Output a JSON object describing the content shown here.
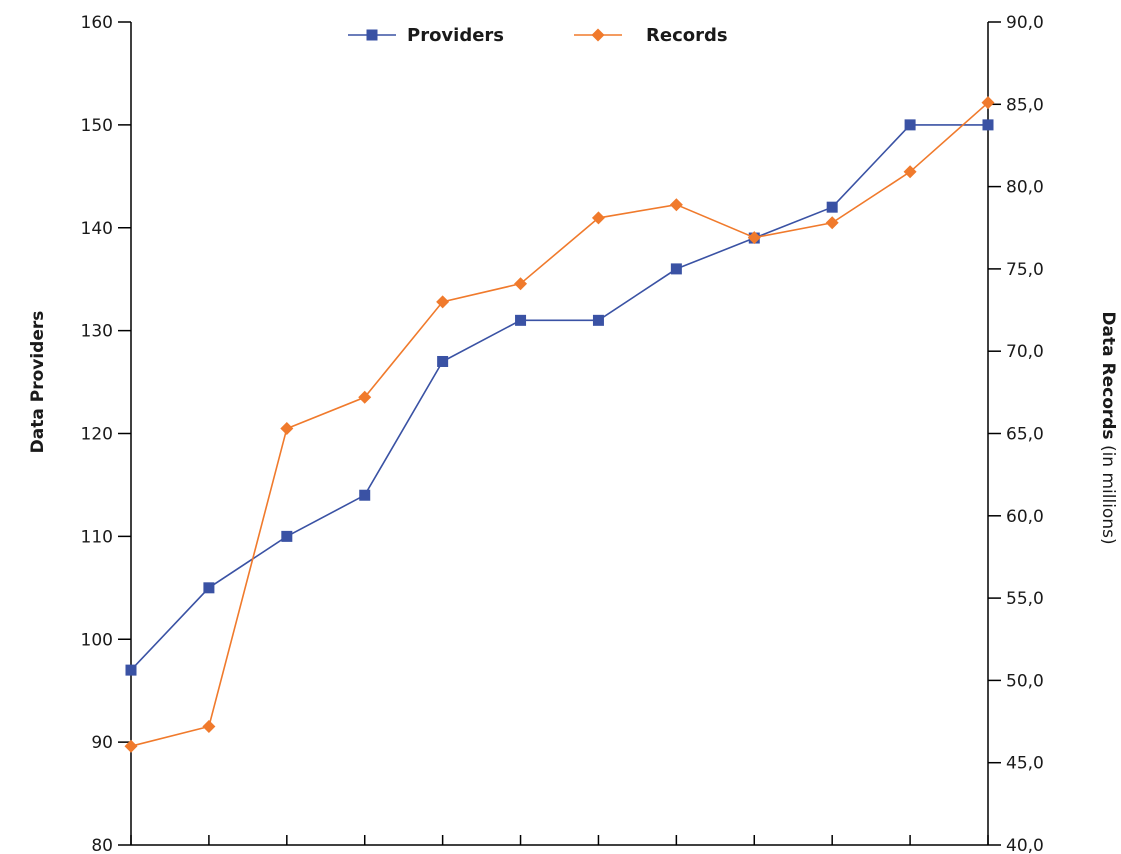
{
  "chart_data": {
    "type": "line",
    "title": "",
    "x": [
      1,
      2,
      3,
      4,
      5,
      6,
      7,
      8,
      9,
      10,
      11,
      12
    ],
    "xlabel": "",
    "y_left": {
      "label": "Data Providers",
      "ylim": [
        80,
        160
      ],
      "ticks": [
        80,
        90,
        100,
        110,
        120,
        130,
        140,
        150,
        160
      ],
      "tick_labels": [
        "80",
        "90",
        "100",
        "110",
        "120",
        "130",
        "140",
        "150",
        "160"
      ]
    },
    "y_right": {
      "label_bold": "Data Records",
      "label_rest": " (in millions)",
      "ylim": [
        40,
        90
      ],
      "ticks": [
        40,
        45,
        50,
        55,
        60,
        65,
        70,
        75,
        80,
        85,
        90
      ],
      "tick_labels": [
        "40,0",
        "45,0",
        "50,0",
        "55,0",
        "60,0",
        "65,0",
        "70,0",
        "75,0",
        "80,0",
        "85,0",
        "90,0"
      ]
    },
    "series": [
      {
        "name": "Providers",
        "axis": "left",
        "marker": "square",
        "color": "#3a52a4",
        "values": [
          97,
          105,
          110,
          114,
          127,
          131,
          131,
          136,
          139,
          142,
          150,
          150
        ]
      },
      {
        "name": "Records",
        "axis": "right",
        "marker": "diamond",
        "color": "#f07a2c",
        "values": [
          46.0,
          47.2,
          65.3,
          67.2,
          73.0,
          74.1,
          78.1,
          78.9,
          76.9,
          77.8,
          80.9,
          85.1
        ]
      }
    ],
    "legend": "top-center",
    "grid": false
  }
}
